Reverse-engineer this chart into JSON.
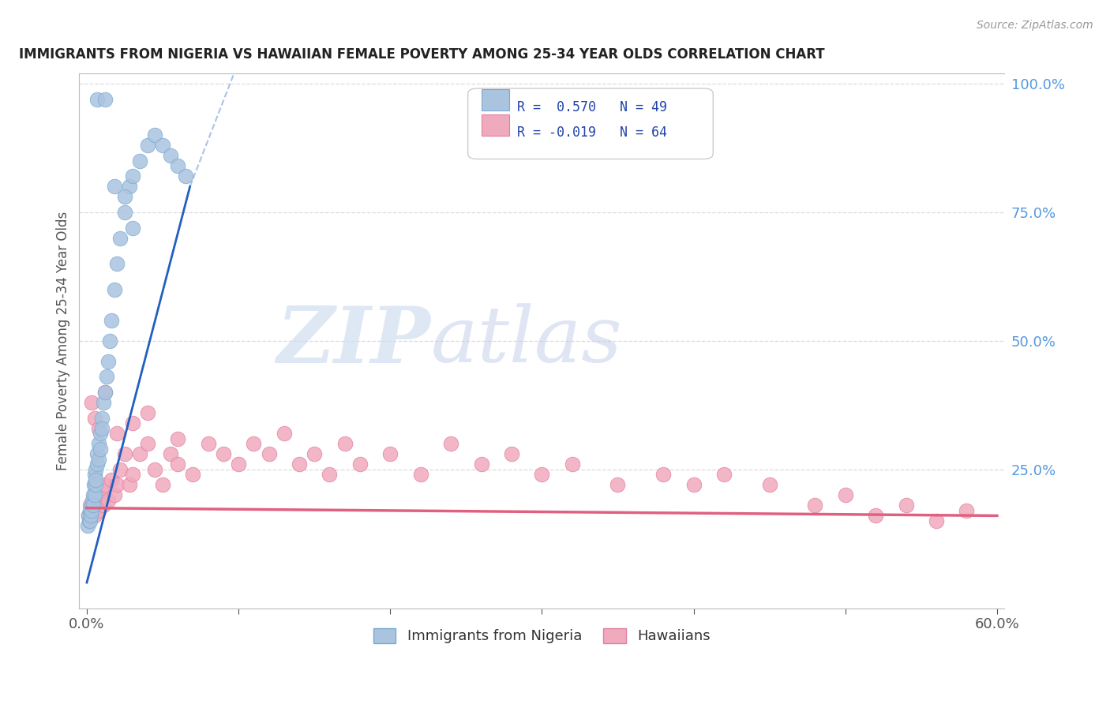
{
  "title": "IMMIGRANTS FROM NIGERIA VS HAWAIIAN FEMALE POVERTY AMONG 25-34 YEAR OLDS CORRELATION CHART",
  "source": "Source: ZipAtlas.com",
  "ylabel": "Female Poverty Among 25-34 Year Olds",
  "R_blue": 0.57,
  "N_blue": 49,
  "R_pink": -0.019,
  "N_pink": 64,
  "blue_color": "#aac4e0",
  "blue_edge_color": "#7aaad0",
  "pink_color": "#f0aabe",
  "pink_edge_color": "#e080a0",
  "blue_line_color": "#2060c0",
  "pink_line_color": "#e06080",
  "dash_line_color": "#aac4e8",
  "watermark_color": "#d0dff0",
  "grid_color": "#d8d8d8",
  "title_color": "#222222",
  "source_color": "#999999",
  "axis_label_color": "#555555",
  "right_axis_color": "#5599dd",
  "legend_border_color": "#cccccc",
  "legend_text_color": "#2244aa",
  "xlim": [
    0.0,
    0.6
  ],
  "ylim": [
    0.0,
    1.0
  ],
  "blue_scatter_x": [
    0.0005,
    0.001,
    0.0015,
    0.002,
    0.002,
    0.0025,
    0.003,
    0.003,
    0.0035,
    0.004,
    0.004,
    0.0045,
    0.005,
    0.005,
    0.0055,
    0.006,
    0.006,
    0.007,
    0.007,
    0.008,
    0.008,
    0.009,
    0.009,
    0.01,
    0.01,
    0.011,
    0.012,
    0.013,
    0.014,
    0.015,
    0.016,
    0.018,
    0.02,
    0.022,
    0.025,
    0.028,
    0.03,
    0.035,
    0.04,
    0.045,
    0.05,
    0.055,
    0.06,
    0.065,
    0.007,
    0.012,
    0.018,
    0.025,
    0.03
  ],
  "blue_scatter_y": [
    0.14,
    0.16,
    0.15,
    0.17,
    0.15,
    0.16,
    0.18,
    0.17,
    0.19,
    0.2,
    0.18,
    0.22,
    0.2,
    0.24,
    0.22,
    0.25,
    0.23,
    0.28,
    0.26,
    0.3,
    0.27,
    0.32,
    0.29,
    0.35,
    0.33,
    0.38,
    0.4,
    0.43,
    0.46,
    0.5,
    0.54,
    0.6,
    0.65,
    0.7,
    0.75,
    0.8,
    0.82,
    0.85,
    0.88,
    0.9,
    0.88,
    0.86,
    0.84,
    0.82,
    0.97,
    0.97,
    0.8,
    0.78,
    0.72
  ],
  "pink_scatter_x": [
    0.001,
    0.002,
    0.003,
    0.004,
    0.005,
    0.006,
    0.007,
    0.008,
    0.009,
    0.01,
    0.011,
    0.012,
    0.014,
    0.016,
    0.018,
    0.02,
    0.022,
    0.025,
    0.028,
    0.03,
    0.035,
    0.04,
    0.045,
    0.05,
    0.055,
    0.06,
    0.07,
    0.08,
    0.09,
    0.1,
    0.11,
    0.12,
    0.13,
    0.14,
    0.15,
    0.16,
    0.17,
    0.18,
    0.2,
    0.22,
    0.24,
    0.26,
    0.28,
    0.3,
    0.32,
    0.35,
    0.38,
    0.4,
    0.42,
    0.45,
    0.48,
    0.5,
    0.52,
    0.54,
    0.56,
    0.58,
    0.003,
    0.005,
    0.008,
    0.012,
    0.02,
    0.03,
    0.04,
    0.06
  ],
  "pink_scatter_y": [
    0.16,
    0.18,
    0.17,
    0.19,
    0.16,
    0.18,
    0.2,
    0.17,
    0.19,
    0.21,
    0.18,
    0.22,
    0.19,
    0.23,
    0.2,
    0.22,
    0.25,
    0.28,
    0.22,
    0.24,
    0.28,
    0.3,
    0.25,
    0.22,
    0.28,
    0.26,
    0.24,
    0.3,
    0.28,
    0.26,
    0.3,
    0.28,
    0.32,
    0.26,
    0.28,
    0.24,
    0.3,
    0.26,
    0.28,
    0.24,
    0.3,
    0.26,
    0.28,
    0.24,
    0.26,
    0.22,
    0.24,
    0.22,
    0.24,
    0.22,
    0.18,
    0.2,
    0.16,
    0.18,
    0.15,
    0.17,
    0.38,
    0.35,
    0.33,
    0.4,
    0.32,
    0.34,
    0.36,
    0.31
  ]
}
